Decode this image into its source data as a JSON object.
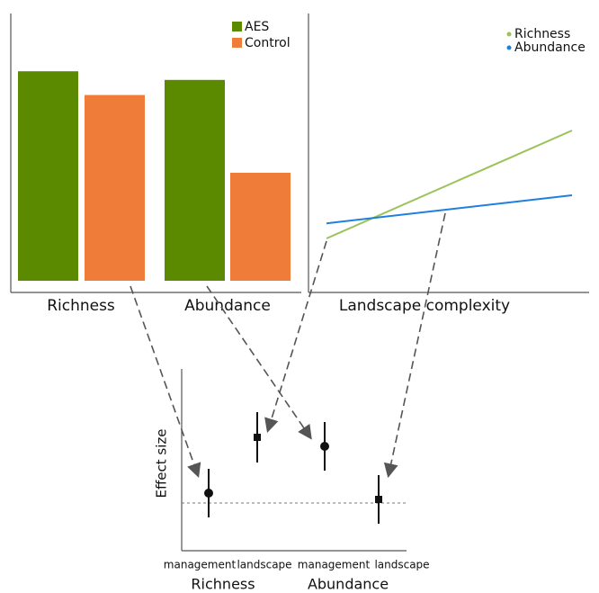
{
  "chart_data": [
    {
      "type": "bar",
      "categories": [
        "Richness",
        "Abundance"
      ],
      "series": [
        {
          "name": "AES",
          "color": "#5b8a00",
          "values": [
            97,
            93
          ]
        },
        {
          "name": "Control",
          "color": "#f07c3a",
          "values": [
            86,
            50
          ]
        }
      ]
    },
    {
      "type": "line",
      "x_label": "Landscape complexity",
      "x": [
        0,
        100
      ],
      "series": [
        {
          "name": "Richness",
          "color": "#9bc35a",
          "values": [
            25,
            75
          ]
        },
        {
          "name": "Abundance",
          "color": "#1f7fe0",
          "values": [
            32,
            45
          ]
        }
      ]
    },
    {
      "type": "errorbar",
      "y_label": "Effect size",
      "categories": [
        "management",
        "landscape",
        "management",
        "landscape"
      ],
      "groups": [
        "Richness",
        "Abundance"
      ],
      "markers": [
        "circle",
        "square",
        "circle",
        "square"
      ],
      "values": [
        5.5,
        36.5,
        31.5,
        2
      ],
      "errors": [
        13.5,
        14,
        13.5,
        13.5
      ]
    }
  ]
}
